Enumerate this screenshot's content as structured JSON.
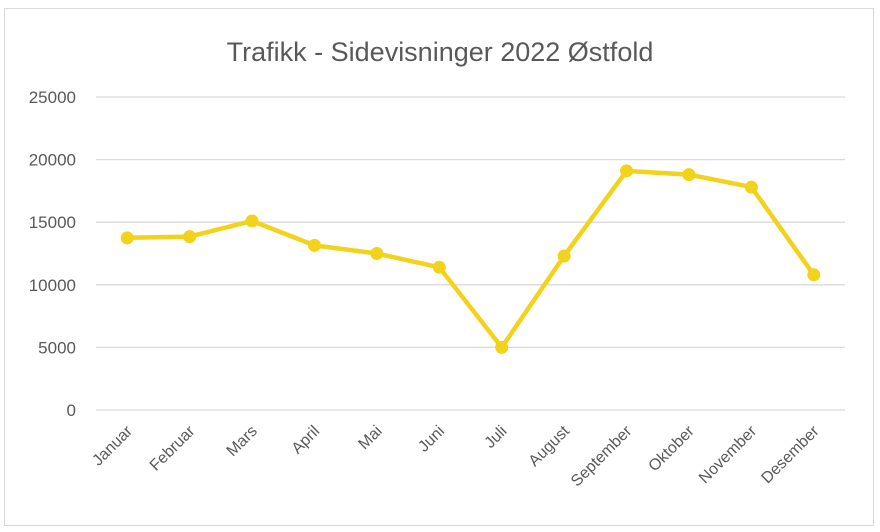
{
  "chart_data": {
    "type": "line",
    "title": "Trafikk - Sidevisninger 2022 Østfold",
    "xlabel": "",
    "ylabel": "",
    "categories": [
      "Januar",
      "Februar",
      "Mars",
      "April",
      "Mai",
      "Juni",
      "Juli",
      "August",
      "September",
      "Oktober",
      "November",
      "Desember"
    ],
    "series": [
      {
        "values": [
          13750,
          13850,
          15100,
          13150,
          12500,
          11400,
          5000,
          12300,
          19100,
          18800,
          17800,
          10800
        ]
      }
    ],
    "ylim": [
      0,
      25000
    ],
    "yticks": [
      "0",
      "5000",
      "10000",
      "15000",
      "20000",
      "25000"
    ],
    "grid": true,
    "legend": "none",
    "colors": {
      "line": "#F2D21B",
      "grid": "#d9d9d9",
      "text": "#595959"
    }
  }
}
